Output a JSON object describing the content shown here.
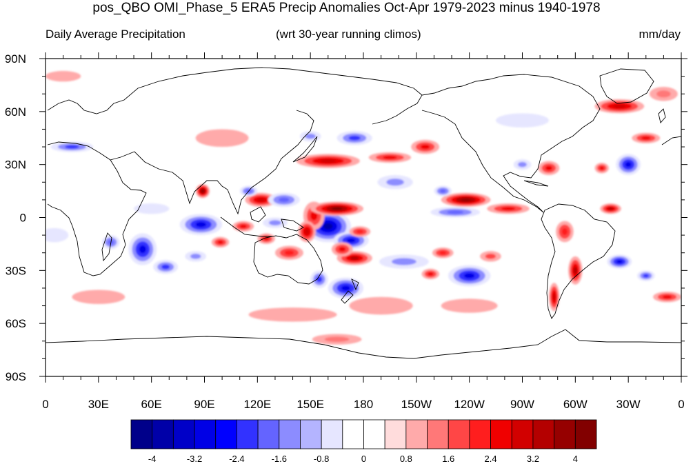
{
  "title": "pos_QBO OMI_Phase_5 ERA5 Precip Anomalies Oct-Apr 1979-2023 minus 1940-1978",
  "subtitle_left": "Daily Average Precipitation",
  "subtitle_center": "(wrt 30-year running climos)",
  "subtitle_right": "mm/day",
  "lat_labels": [
    "90N",
    "60N",
    "30N",
    "0",
    "30S",
    "60S",
    "90S"
  ],
  "lon_labels": [
    "0",
    "30E",
    "60E",
    "90E",
    "120E",
    "150E",
    "180",
    "150W",
    "120W",
    "90W",
    "60W",
    "30W",
    "0"
  ],
  "colorbar": {
    "colors": [
      "#00008a",
      "#0000a8",
      "#0000c8",
      "#0000e6",
      "#0000ff",
      "#3232ff",
      "#6464ff",
      "#8c8cff",
      "#b4b4ff",
      "#e6e6ff",
      "#ffffff",
      "#ffffff",
      "#ffdcdc",
      "#ffaaaa",
      "#ff7878",
      "#ff4646",
      "#ff1e1e",
      "#f00000",
      "#d20000",
      "#b40000",
      "#960000",
      "#820000"
    ],
    "tick_labels": [
      "-4",
      "-3.2",
      "-2.4",
      "-1.6",
      "-0.8",
      "0",
      "0.8",
      "1.6",
      "2.4",
      "3.2",
      "4"
    ]
  },
  "anomalies": [
    {
      "lon": 160,
      "lat": -5,
      "rx": 13,
      "ry": 9,
      "v": -4
    },
    {
      "lon": 173,
      "lat": -13,
      "rx": 10,
      "ry": 5,
      "v": -3.2
    },
    {
      "lon": 152,
      "lat": 1,
      "rx": 6,
      "ry": 8,
      "v": 2.8
    },
    {
      "lon": 165,
      "lat": 5,
      "rx": 15,
      "ry": 4,
      "v": 4
    },
    {
      "lon": 148,
      "lat": -8,
      "rx": 5,
      "ry": 6,
      "v": 3
    },
    {
      "lon": 175,
      "lat": -23,
      "rx": 10,
      "ry": 4,
      "v": 3.5
    },
    {
      "lon": 168,
      "lat": -18,
      "rx": 6,
      "ry": 4,
      "v": 2.8
    },
    {
      "lon": 178,
      "lat": -8,
      "rx": 6,
      "ry": 3,
      "v": 2.2
    },
    {
      "lon": 170,
      "lat": -40,
      "rx": 10,
      "ry": 6,
      "v": -3.5
    },
    {
      "lon": 155,
      "lat": -35,
      "rx": 5,
      "ry": 5,
      "v": -2.8
    },
    {
      "lon": 138,
      "lat": -20,
      "rx": 8,
      "ry": 4,
      "v": 2
    },
    {
      "lon": 125,
      "lat": -12,
      "rx": 5,
      "ry": 3,
      "v": 2.4
    },
    {
      "lon": 88,
      "lat": -4,
      "rx": 12,
      "ry": 6,
      "v": -3.5
    },
    {
      "lon": 55,
      "lat": -18,
      "rx": 8,
      "ry": 9,
      "v": -3.2
    },
    {
      "lon": 68,
      "lat": -28,
      "rx": 7,
      "ry": 4,
      "v": -2.6
    },
    {
      "lon": 85,
      "lat": -22,
      "rx": 6,
      "ry": 3,
      "v": -1.8
    },
    {
      "lon": 37,
      "lat": -14,
      "rx": 5,
      "ry": 4,
      "v": -2
    },
    {
      "lon": 89,
      "lat": 15,
      "rx": 4,
      "ry": 4,
      "v": 3.6
    },
    {
      "lon": 112,
      "lat": -5,
      "rx": 6,
      "ry": 3,
      "v": 2.6
    },
    {
      "lon": 122,
      "lat": 10,
      "rx": 9,
      "ry": 4,
      "v": 3
    },
    {
      "lon": 135,
      "lat": 10,
      "rx": 9,
      "ry": 4,
      "v": -2
    },
    {
      "lon": 115,
      "lat": 15,
      "rx": 5,
      "ry": 3,
      "v": -2
    },
    {
      "lon": 130,
      "lat": -3,
      "rx": 7,
      "ry": 3,
      "v": -1.8
    },
    {
      "lon": 99,
      "lat": -14,
      "rx": 5,
      "ry": 3,
      "v": 2.6
    },
    {
      "lon": 160,
      "lat": 32,
      "rx": 18,
      "ry": 4,
      "v": 3
    },
    {
      "lon": 195,
      "lat": 34,
      "rx": 12,
      "ry": 3,
      "v": 2.6
    },
    {
      "lon": 175,
      "lat": 45,
      "rx": 10,
      "ry": 4,
      "v": -2.2
    },
    {
      "lon": 150,
      "lat": 46,
      "rx": 6,
      "ry": 3,
      "v": -1.6
    },
    {
      "lon": 215,
      "lat": 40,
      "rx": 8,
      "ry": 4,
      "v": 2.6
    },
    {
      "lon": 198,
      "lat": 20,
      "rx": 10,
      "ry": 4,
      "v": -1.6
    },
    {
      "lon": 238,
      "lat": 10,
      "rx": 14,
      "ry": 4,
      "v": 3.6
    },
    {
      "lon": 262,
      "lat": 5,
      "rx": 12,
      "ry": 3,
      "v": 2.6
    },
    {
      "lon": 232,
      "lat": 3,
      "rx": 14,
      "ry": 3,
      "v": -2
    },
    {
      "lon": 225,
      "lat": 15,
      "rx": 5,
      "ry": 3,
      "v": -2
    },
    {
      "lon": 203,
      "lat": -25,
      "rx": 14,
      "ry": 4,
      "v": -1.6
    },
    {
      "lon": 218,
      "lat": -32,
      "rx": 5,
      "ry": 3,
      "v": 2.6
    },
    {
      "lon": 240,
      "lat": -33,
      "rx": 12,
      "ry": 6,
      "v": -3
    },
    {
      "lon": 225,
      "lat": -20,
      "rx": 6,
      "ry": 3,
      "v": 2.2
    },
    {
      "lon": 252,
      "lat": -22,
      "rx": 6,
      "ry": 3,
      "v": 1.8
    },
    {
      "lon": 300,
      "lat": -30,
      "rx": 4,
      "ry": 8,
      "v": 3.4
    },
    {
      "lon": 288,
      "lat": -45,
      "rx": 3,
      "ry": 8,
      "v": 3
    },
    {
      "lon": 325,
      "lat": -25,
      "rx": 7,
      "ry": 4,
      "v": -3
    },
    {
      "lon": 340,
      "lat": -33,
      "rx": 5,
      "ry": 3,
      "v": -2.2
    },
    {
      "lon": 294,
      "lat": -8,
      "rx": 5,
      "ry": 6,
      "v": 2
    },
    {
      "lon": 320,
      "lat": 5,
      "rx": 6,
      "ry": 3,
      "v": 3.2
    },
    {
      "lon": 330,
      "lat": 30,
      "rx": 7,
      "ry": 6,
      "v": -3
    },
    {
      "lon": 315,
      "lat": 28,
      "rx": 4,
      "ry": 3,
      "v": 2.4
    },
    {
      "lon": 285,
      "lat": 28,
      "rx": 6,
      "ry": 4,
      "v": 2.6
    },
    {
      "lon": 270,
      "lat": 30,
      "rx": 5,
      "ry": 3,
      "v": -1.8
    },
    {
      "lon": 340,
      "lat": 45,
      "rx": 8,
      "ry": 3,
      "v": 2.4
    },
    {
      "lon": 325,
      "lat": 63,
      "rx": 14,
      "ry": 4,
      "v": 3
    },
    {
      "lon": 352,
      "lat": -45,
      "rx": 8,
      "ry": 3,
      "v": 2.6
    },
    {
      "lon": 15,
      "lat": 40,
      "rx": 12,
      "ry": 3,
      "v": -2.4
    },
    {
      "lon": 190,
      "lat": -50,
      "rx": 18,
      "ry": 5,
      "v": 1.2
    },
    {
      "lon": 140,
      "lat": -55,
      "rx": 25,
      "ry": 4,
      "v": 0.9
    },
    {
      "lon": 165,
      "lat": -69,
      "rx": 14,
      "ry": 3,
      "v": 1.3
    },
    {
      "lon": 30,
      "lat": -45,
      "rx": 15,
      "ry": 4,
      "v": 0.9
    },
    {
      "lon": 240,
      "lat": -50,
      "rx": 16,
      "ry": 4,
      "v": 0.9
    },
    {
      "lon": 60,
      "lat": 5,
      "rx": 10,
      "ry": 3,
      "v": -1
    },
    {
      "lon": 5,
      "lat": -10,
      "rx": 8,
      "ry": 4,
      "v": -1.2
    },
    {
      "lon": 10,
      "lat": 80,
      "rx": 10,
      "ry": 3,
      "v": 1.2
    },
    {
      "lon": 100,
      "lat": 45,
      "rx": 15,
      "ry": 5,
      "v": 0.9
    },
    {
      "lon": 270,
      "lat": 55,
      "rx": 15,
      "ry": 4,
      "v": -0.9
    },
    {
      "lon": 350,
      "lat": 70,
      "rx": 8,
      "ry": 4,
      "v": 1.4
    }
  ]
}
